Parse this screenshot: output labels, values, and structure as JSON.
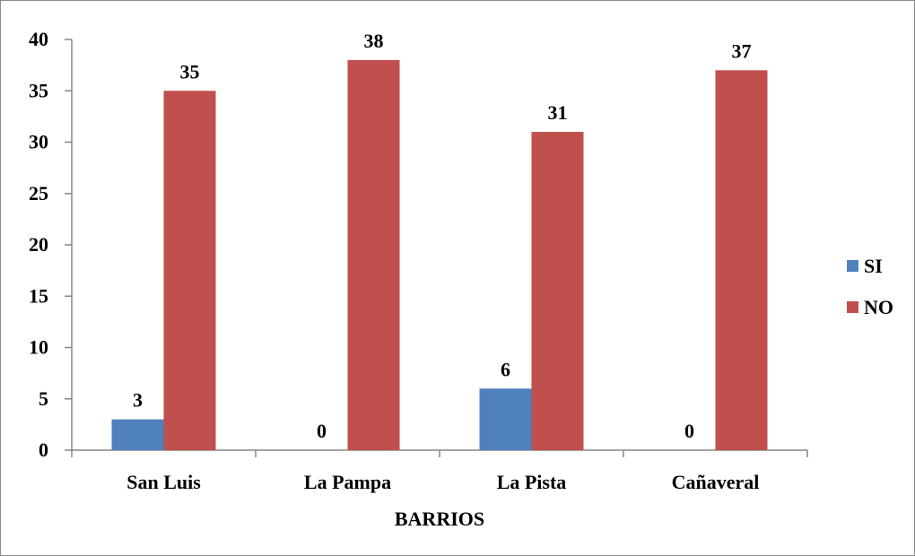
{
  "chart_data": {
    "type": "bar",
    "title": "",
    "xlabel": "BARRIOS",
    "ylabel": "",
    "categories": [
      "San Luis",
      "La Pampa",
      "La Pista",
      "Cañaveral"
    ],
    "series": [
      {
        "name": "SI",
        "values": [
          3,
          0,
          6,
          0
        ],
        "color": "#4f81bd"
      },
      {
        "name": "NO",
        "values": [
          35,
          38,
          31,
          37
        ],
        "color": "#c0504d"
      }
    ],
    "ylim": [
      0,
      40
    ],
    "yticks": [
      0,
      5,
      10,
      15,
      20,
      25,
      30,
      35,
      40
    ],
    "grid": false,
    "legend_position": "right",
    "data_labels": true
  }
}
